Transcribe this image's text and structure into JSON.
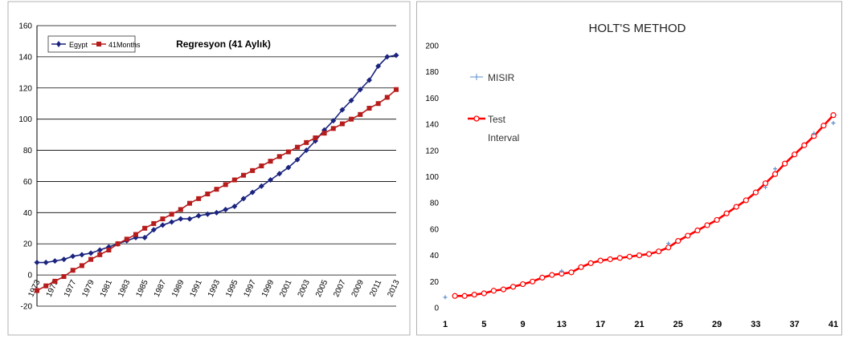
{
  "chart_data": [
    {
      "type": "line",
      "title": "Regresyon (41 Aylık)",
      "xlabel": "",
      "ylabel": "",
      "ylim": [
        -20,
        160
      ],
      "y_ticks": [
        "-20",
        "0",
        "20",
        "40",
        "60",
        "80",
        "100",
        "120",
        "140",
        "160"
      ],
      "x_tick_labels": [
        "1973",
        "1975",
        "1977",
        "1979",
        "1981",
        "1983",
        "1985",
        "1987",
        "1989",
        "1991",
        "1993",
        "1995",
        "1997",
        "1999",
        "2001",
        "2003",
        "2005",
        "2007",
        "2009",
        "2011",
        "2013"
      ],
      "x": [
        1973,
        1974,
        1975,
        1976,
        1977,
        1978,
        1979,
        1980,
        1981,
        1982,
        1983,
        1984,
        1985,
        1986,
        1987,
        1988,
        1989,
        1990,
        1991,
        1992,
        1993,
        1994,
        1995,
        1996,
        1997,
        1998,
        1999,
        2000,
        2001,
        2002,
        2003,
        2004,
        2005,
        2006,
        2007,
        2008,
        2009,
        2010,
        2011,
        2012,
        2013
      ],
      "grid": true,
      "legend_position": "top-left",
      "series": [
        {
          "name": "Egypt",
          "color": "#1a237e",
          "marker": "diamond",
          "values": [
            8,
            8,
            9,
            10,
            12,
            13,
            14,
            16,
            18,
            20,
            22,
            24,
            24,
            29,
            32,
            34,
            36,
            36,
            38,
            39,
            40,
            42,
            44,
            49,
            53,
            57,
            61,
            65,
            69,
            74,
            80,
            86,
            93,
            99,
            106,
            112,
            119,
            125,
            134,
            140,
            141
          ]
        },
        {
          "name": "41Months",
          "color": "#b71c1c",
          "marker": "square",
          "values": [
            -10,
            -7,
            -4,
            -1,
            3,
            6,
            10,
            13,
            16,
            20,
            23,
            26,
            30,
            33,
            36,
            39,
            42,
            46,
            49,
            52,
            55,
            58,
            61,
            64,
            67,
            70,
            73,
            76,
            79,
            82,
            85,
            88,
            91,
            94,
            97,
            100,
            103,
            107,
            110,
            114,
            119
          ]
        }
      ]
    },
    {
      "type": "line",
      "title": "HOLT'S METHOD",
      "xlabel": "",
      "ylabel": "",
      "ylim": [
        0,
        200
      ],
      "xlim": [
        1,
        41
      ],
      "y_ticks": [
        "0",
        "20",
        "40",
        "60",
        "80",
        "100",
        "120",
        "140",
        "160",
        "180",
        "200"
      ],
      "x_tick_labels": [
        "1",
        "5",
        "9",
        "13",
        "17",
        "21",
        "25",
        "29",
        "33",
        "37",
        "41"
      ],
      "x_tick_values": [
        1,
        5,
        9,
        13,
        17,
        21,
        25,
        29,
        33,
        37,
        41
      ],
      "grid": false,
      "legend_position": "top-left",
      "series": [
        {
          "name": "MISIR",
          "color": "#5b8cc9",
          "marker": "plus",
          "x": [
            1,
            13,
            24,
            34,
            35,
            39,
            41
          ],
          "values": [
            8,
            28,
            49,
            92,
            106,
            133,
            141
          ]
        },
        {
          "name": "Test Interval",
          "name_lines": [
            "Test",
            "Interval"
          ],
          "color": "#ff0000",
          "marker": "circle",
          "x": [
            2,
            3,
            4,
            5,
            6,
            7,
            8,
            9,
            10,
            11,
            12,
            13,
            14,
            15,
            16,
            17,
            18,
            19,
            20,
            21,
            22,
            23,
            24,
            25,
            26,
            27,
            28,
            29,
            30,
            31,
            32,
            33,
            34,
            35,
            36,
            37,
            38,
            39,
            40,
            41
          ],
          "values": [
            9,
            9,
            10,
            11,
            13,
            14,
            16,
            18,
            20,
            23,
            25,
            26,
            27,
            31,
            34,
            36,
            37,
            38,
            39,
            40,
            41,
            43,
            46,
            51,
            55,
            59,
            63,
            67,
            72,
            77,
            82,
            88,
            95,
            102,
            110,
            117,
            124,
            131,
            139,
            147
          ]
        }
      ]
    }
  ]
}
